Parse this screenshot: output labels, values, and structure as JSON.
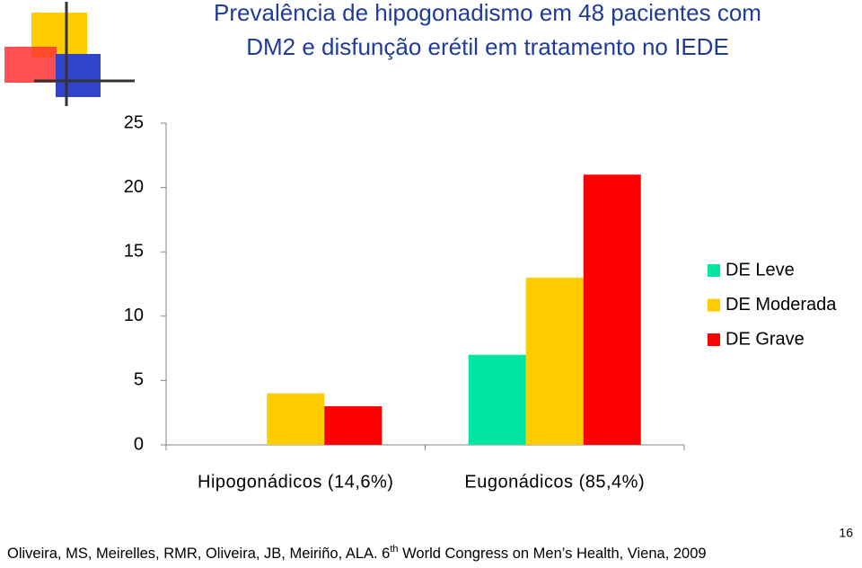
{
  "chart_data": {
    "type": "bar",
    "title": [
      "Prevalência de hipogonadismo em 48 pacientes com",
      "DM2 e disfunção erétil em tratamento no IEDE"
    ],
    "categories": [
      "Hipogonádicos (14,6%)",
      "Eugonádicos (85,4%)"
    ],
    "series": [
      {
        "name": "DE Leve",
        "color": "#00e6a2",
        "values": [
          0,
          7
        ]
      },
      {
        "name": "DE Moderada",
        "color": "#ffcc00",
        "values": [
          4,
          13
        ]
      },
      {
        "name": "DE Grave",
        "color": "#ff0000",
        "values": [
          3,
          21
        ]
      }
    ],
    "ylim": [
      0,
      25
    ],
    "yticks": [
      0,
      5,
      10,
      15,
      20,
      25
    ],
    "grid": false,
    "legend": "right"
  },
  "citation": {
    "before": "Oliveira, MS, Meirelles, RMR, Oliveira, JB, Meiriño, ALA. 6",
    "sup": "th",
    "after": " World Congress on Men’s Health, Viena, 2009"
  },
  "slide_number": "16"
}
